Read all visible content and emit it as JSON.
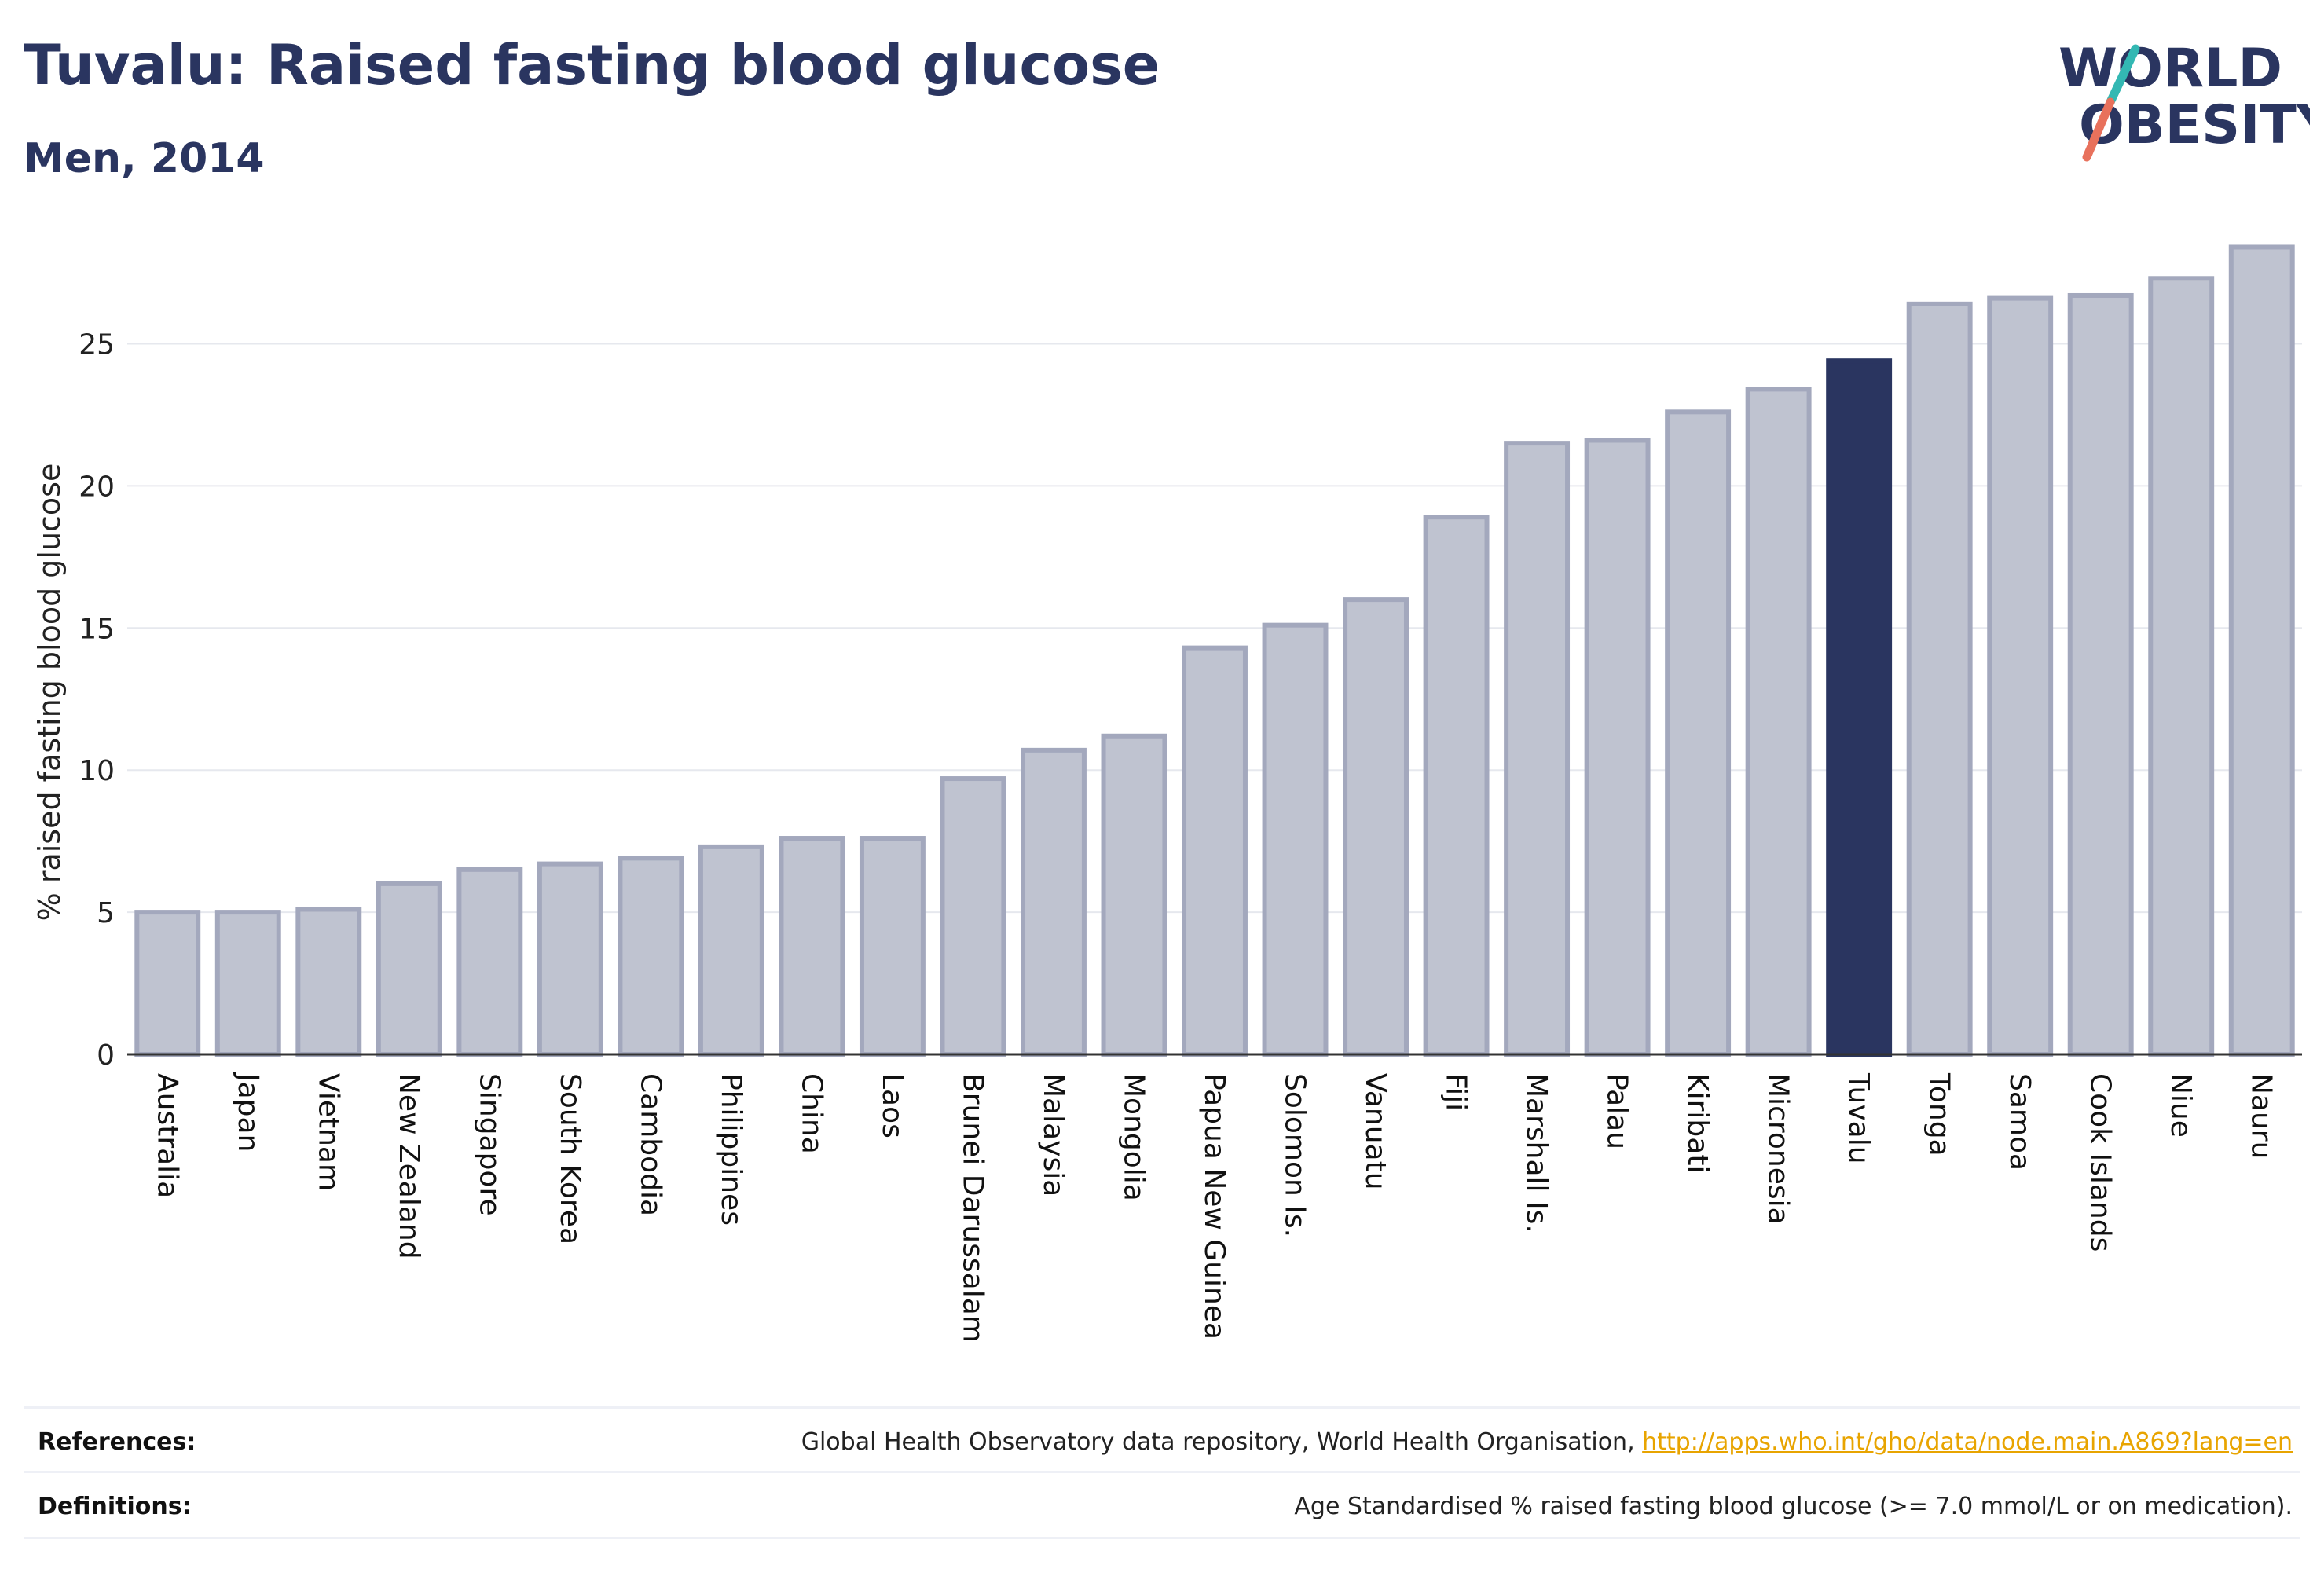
{
  "header": {
    "title": "Tuvalu: Raised fasting blood glucose",
    "subtitle": "Men, 2014"
  },
  "logo": {
    "line1": "WORLD",
    "line2": "OBESITY"
  },
  "chart_data": {
    "type": "bar",
    "ylabel": "% raised fasting blood glucose",
    "ylim": [
      0,
      28.8
    ],
    "yticks": [
      0,
      5,
      10,
      15,
      20,
      25
    ],
    "grid": true,
    "highlight": "Tuvalu",
    "colors": {
      "bar": "#bfc3d0",
      "bar_edge": "#a3a8bd",
      "highlight": "#2a3560",
      "grid": "#e6e8ee"
    },
    "categories": [
      "Australia",
      "Japan",
      "Vietnam",
      "New Zealand",
      "Singapore",
      "South Korea",
      "Cambodia",
      "Philippines",
      "China",
      "Laos",
      "Brunei Darussalam",
      "Malaysia",
      "Mongolia",
      "Papua New Guinea",
      "Solomon Is.",
      "Vanuatu",
      "Fiji",
      "Marshall Is.",
      "Palau",
      "Kiribati",
      "Micronesia",
      "Tuvalu",
      "Tonga",
      "Samoa",
      "Cook Islands",
      "Niue",
      "Nauru"
    ],
    "values": [
      5.0,
      5.0,
      5.1,
      6.0,
      6.5,
      6.7,
      6.9,
      7.3,
      7.6,
      7.6,
      9.7,
      10.7,
      11.2,
      14.3,
      15.1,
      16.0,
      18.9,
      21.5,
      21.6,
      22.6,
      23.4,
      24.4,
      26.4,
      26.6,
      26.7,
      27.3,
      28.4
    ]
  },
  "footer": {
    "references_label": "References:",
    "references_text": "Global Health Observatory data repository, World Health Organisation, ",
    "references_link": "http://apps.who.int/gho/data/node.main.A869?lang=en",
    "definitions_label": "Definitions:",
    "definitions_text": "Age Standardised % raised fasting blood glucose (>= 7.0 mmol/L or on medication)."
  }
}
